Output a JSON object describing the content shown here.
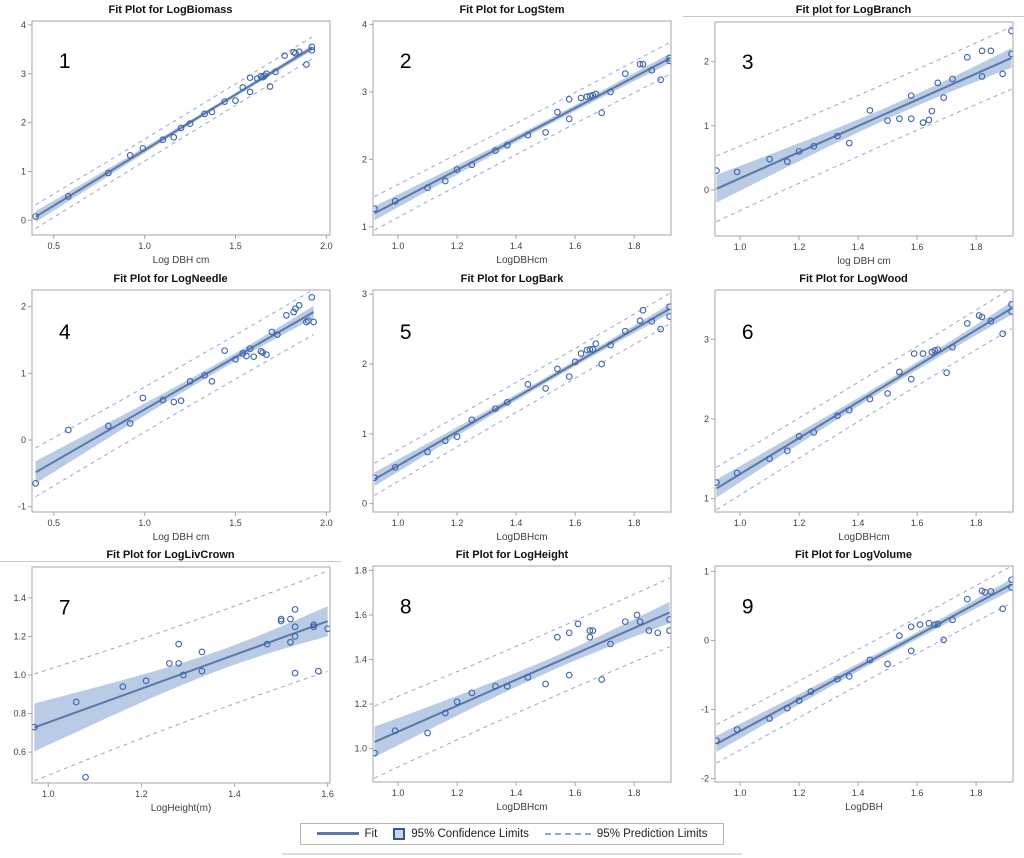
{
  "colors": {
    "fit_line": "#5b78a6",
    "ci_band": "#b9cbe5",
    "pred_line": "#93a6d8",
    "marker": "#3d63ae",
    "frame": "#a6a6a6",
    "tick_text": "#3f3f3f",
    "legend_border": "#b5b5b5",
    "rule": "#dcdcdc"
  },
  "legend": {
    "items": [
      {
        "label": "Fit",
        "swatch": "line"
      },
      {
        "label": "95% Confidence Limits",
        "swatch": "box"
      },
      {
        "label": "95% Prediction Limits",
        "swatch": "dashes"
      }
    ]
  },
  "chart_data": [
    {
      "type": "scatter",
      "number": "1",
      "title": "Fit Plot for LogBiomass",
      "xlabel": "Log DBH cm",
      "ylabel": "",
      "xlim": [
        0.38,
        2.02
      ],
      "ylim": [
        -0.3,
        4.08
      ],
      "xticks": [
        0.5,
        1.0,
        1.5,
        2.0
      ],
      "xtick_labels": [
        "0.5",
        "1.0",
        "1.5",
        "2.0"
      ],
      "yticks": [
        0,
        1,
        2,
        3,
        4
      ],
      "ytick_labels": [
        "0",
        "1",
        "2",
        "3",
        "4"
      ],
      "title_underline": false,
      "legend_position": "bottom-shared",
      "points": [
        [
          0.4,
          0.08
        ],
        [
          0.58,
          0.49
        ],
        [
          0.8,
          0.97
        ],
        [
          0.92,
          1.33
        ],
        [
          0.99,
          1.47
        ],
        [
          1.1,
          1.65
        ],
        [
          1.16,
          1.7
        ],
        [
          1.2,
          1.89
        ],
        [
          1.25,
          1.98
        ],
        [
          1.33,
          2.18
        ],
        [
          1.37,
          2.22
        ],
        [
          1.44,
          2.43
        ],
        [
          1.5,
          2.45
        ],
        [
          1.54,
          2.72
        ],
        [
          1.58,
          2.63
        ],
        [
          1.58,
          2.92
        ],
        [
          1.62,
          2.9
        ],
        [
          1.64,
          2.95
        ],
        [
          1.65,
          2.93
        ],
        [
          1.66,
          2.96
        ],
        [
          1.67,
          3.0
        ],
        [
          1.69,
          2.74
        ],
        [
          1.72,
          3.04
        ],
        [
          1.77,
          3.37
        ],
        [
          1.82,
          3.44
        ],
        [
          1.83,
          3.42
        ],
        [
          1.85,
          3.45
        ],
        [
          1.89,
          3.19
        ],
        [
          1.92,
          3.55
        ],
        [
          1.92,
          3.48
        ]
      ]
    },
    {
      "type": "scatter",
      "number": "2",
      "title": "Fit Plot for LogStem",
      "xlabel": "LogDBHcm",
      "ylabel": "",
      "xlim": [
        0.915,
        1.925
      ],
      "ylim": [
        0.88,
        4.05
      ],
      "xticks": [
        1.0,
        1.2,
        1.4,
        1.6,
        1.8
      ],
      "xtick_labels": [
        "1.0",
        "1.2",
        "1.4",
        "1.6",
        "1.8"
      ],
      "yticks": [
        1,
        2,
        3,
        4
      ],
      "ytick_labels": [
        "1",
        "2",
        "3",
        "4"
      ],
      "title_underline": false,
      "legend_position": "bottom-shared",
      "points": [
        [
          0.92,
          1.27
        ],
        [
          0.99,
          1.38
        ],
        [
          1.1,
          1.58
        ],
        [
          1.16,
          1.68
        ],
        [
          1.2,
          1.85
        ],
        [
          1.25,
          1.92
        ],
        [
          1.33,
          2.13
        ],
        [
          1.37,
          2.21
        ],
        [
          1.44,
          2.36
        ],
        [
          1.5,
          2.4
        ],
        [
          1.54,
          2.7
        ],
        [
          1.58,
          2.6
        ],
        [
          1.58,
          2.89
        ],
        [
          1.62,
          2.91
        ],
        [
          1.64,
          2.93
        ],
        [
          1.65,
          2.94
        ],
        [
          1.66,
          2.95
        ],
        [
          1.67,
          2.97
        ],
        [
          1.69,
          2.69
        ],
        [
          1.72,
          3.0
        ],
        [
          1.77,
          3.27
        ],
        [
          1.82,
          3.41
        ],
        [
          1.83,
          3.41
        ],
        [
          1.86,
          3.32
        ],
        [
          1.89,
          3.18
        ],
        [
          1.92,
          3.5
        ],
        [
          1.92,
          3.46
        ]
      ]
    },
    {
      "type": "scatter",
      "number": "3",
      "title": "Fit plot for LogBranch",
      "xlabel": "log DBH cm",
      "ylabel": "",
      "xlim": [
        0.915,
        1.925
      ],
      "ylim": [
        -0.72,
        2.62
      ],
      "xticks": [
        1.0,
        1.2,
        1.4,
        1.6,
        1.8
      ],
      "xtick_labels": [
        "1.0",
        "1.2",
        "1.4",
        "1.6",
        "1.8"
      ],
      "yticks": [
        0,
        1,
        2
      ],
      "ytick_labels": [
        "0",
        "1",
        "2"
      ],
      "title_underline": true,
      "legend_position": "bottom-shared",
      "points": [
        [
          0.92,
          0.3
        ],
        [
          0.99,
          0.28
        ],
        [
          1.1,
          0.48
        ],
        [
          1.16,
          0.44
        ],
        [
          1.2,
          0.6
        ],
        [
          1.25,
          0.68
        ],
        [
          1.33,
          0.84
        ],
        [
          1.37,
          0.73
        ],
        [
          1.44,
          1.24
        ],
        [
          1.5,
          1.08
        ],
        [
          1.54,
          1.11
        ],
        [
          1.58,
          1.11
        ],
        [
          1.58,
          1.47
        ],
        [
          1.62,
          1.05
        ],
        [
          1.64,
          1.09
        ],
        [
          1.65,
          1.23
        ],
        [
          1.67,
          1.67
        ],
        [
          1.69,
          1.44
        ],
        [
          1.72,
          1.73
        ],
        [
          1.77,
          2.07
        ],
        [
          1.82,
          1.77
        ],
        [
          1.82,
          2.17
        ],
        [
          1.85,
          2.17
        ],
        [
          1.89,
          1.81
        ],
        [
          1.92,
          2.48
        ],
        [
          1.92,
          2.12
        ]
      ]
    },
    {
      "type": "scatter",
      "number": "4",
      "title": "Fit Plot for LogNeedle",
      "xlabel": "Log DBH cm",
      "ylabel": "",
      "xlim": [
        0.38,
        2.02
      ],
      "ylim": [
        -1.08,
        2.25
      ],
      "xticks": [
        0.5,
        1.0,
        1.5,
        2.0
      ],
      "xtick_labels": [
        "0.5",
        "1.0",
        "1.5",
        "2.0"
      ],
      "yticks": [
        -1,
        0,
        1,
        2
      ],
      "ytick_labels": [
        "-1",
        "0",
        "1",
        "2"
      ],
      "title_underline": false,
      "legend_position": "bottom-shared",
      "points": [
        [
          0.4,
          -0.65
        ],
        [
          0.58,
          0.15
        ],
        [
          0.8,
          0.21
        ],
        [
          0.92,
          0.25
        ],
        [
          0.99,
          0.63
        ],
        [
          1.1,
          0.6
        ],
        [
          1.16,
          0.57
        ],
        [
          1.2,
          0.59
        ],
        [
          1.25,
          0.88
        ],
        [
          1.33,
          0.97
        ],
        [
          1.37,
          0.88
        ],
        [
          1.44,
          1.34
        ],
        [
          1.5,
          1.21
        ],
        [
          1.54,
          1.3
        ],
        [
          1.56,
          1.26
        ],
        [
          1.58,
          1.37
        ],
        [
          1.6,
          1.25
        ],
        [
          1.64,
          1.33
        ],
        [
          1.65,
          1.31
        ],
        [
          1.67,
          1.28
        ],
        [
          1.7,
          1.62
        ],
        [
          1.73,
          1.58
        ],
        [
          1.78,
          1.87
        ],
        [
          1.82,
          1.92
        ],
        [
          1.83,
          1.97
        ],
        [
          1.85,
          2.02
        ],
        [
          1.89,
          1.77
        ],
        [
          1.9,
          1.79
        ],
        [
          1.92,
          2.14
        ],
        [
          1.93,
          1.77
        ]
      ]
    },
    {
      "type": "scatter",
      "number": "5",
      "title": "Fit Plot for LogBark",
      "xlabel": "LogDBHcm",
      "ylabel": "",
      "xlim": [
        0.915,
        1.925
      ],
      "ylim": [
        -0.12,
        3.06
      ],
      "xticks": [
        1.0,
        1.2,
        1.4,
        1.6,
        1.8
      ],
      "xtick_labels": [
        "1.0",
        "1.2",
        "1.4",
        "1.6",
        "1.8"
      ],
      "yticks": [
        0,
        1,
        2,
        3
      ],
      "ytick_labels": [
        "0",
        "1",
        "2",
        "3"
      ],
      "title_underline": false,
      "legend_position": "bottom-shared",
      "points": [
        [
          0.92,
          0.37
        ],
        [
          0.99,
          0.52
        ],
        [
          1.1,
          0.74
        ],
        [
          1.16,
          0.9
        ],
        [
          1.2,
          0.96
        ],
        [
          1.25,
          1.2
        ],
        [
          1.33,
          1.36
        ],
        [
          1.37,
          1.45
        ],
        [
          1.44,
          1.71
        ],
        [
          1.5,
          1.65
        ],
        [
          1.54,
          1.93
        ],
        [
          1.58,
          1.82
        ],
        [
          1.6,
          2.03
        ],
        [
          1.62,
          2.15
        ],
        [
          1.64,
          2.2
        ],
        [
          1.65,
          2.21
        ],
        [
          1.66,
          2.21
        ],
        [
          1.67,
          2.29
        ],
        [
          1.69,
          2.0
        ],
        [
          1.72,
          2.27
        ],
        [
          1.77,
          2.47
        ],
        [
          1.82,
          2.62
        ],
        [
          1.83,
          2.77
        ],
        [
          1.86,
          2.61
        ],
        [
          1.89,
          2.5
        ],
        [
          1.92,
          2.82
        ],
        [
          1.92,
          2.68
        ]
      ]
    },
    {
      "type": "scatter",
      "number": "6",
      "title": "Fit Plot for LogWood",
      "xlabel": "LogDBHcm",
      "ylabel": "",
      "xlim": [
        0.915,
        1.925
      ],
      "ylim": [
        0.83,
        3.62
      ],
      "xticks": [
        1.0,
        1.2,
        1.4,
        1.6,
        1.8
      ],
      "xtick_labels": [
        "1.0",
        "1.2",
        "1.4",
        "1.6",
        "1.8"
      ],
      "yticks": [
        1,
        2,
        3
      ],
      "ytick_labels": [
        "1",
        "2",
        "3"
      ],
      "title_underline": false,
      "legend_position": "bottom-shared",
      "points": [
        [
          0.92,
          1.2
        ],
        [
          0.99,
          1.32
        ],
        [
          1.1,
          1.5
        ],
        [
          1.16,
          1.6
        ],
        [
          1.2,
          1.78
        ],
        [
          1.25,
          1.83
        ],
        [
          1.33,
          2.04
        ],
        [
          1.37,
          2.11
        ],
        [
          1.44,
          2.25
        ],
        [
          1.5,
          2.32
        ],
        [
          1.54,
          2.59
        ],
        [
          1.58,
          2.5
        ],
        [
          1.59,
          2.82
        ],
        [
          1.62,
          2.82
        ],
        [
          1.65,
          2.84
        ],
        [
          1.66,
          2.86
        ],
        [
          1.67,
          2.87
        ],
        [
          1.7,
          2.58
        ],
        [
          1.72,
          2.9
        ],
        [
          1.77,
          3.2
        ],
        [
          1.81,
          3.3
        ],
        [
          1.82,
          3.28
        ],
        [
          1.85,
          3.23
        ],
        [
          1.89,
          3.07
        ],
        [
          1.92,
          3.44
        ],
        [
          1.92,
          3.35
        ]
      ]
    },
    {
      "type": "scatter",
      "number": "7",
      "title": "Fit Plot for LogLivCrown",
      "xlabel": "LogHeight(m)",
      "ylabel": "",
      "xlim": [
        0.965,
        1.605
      ],
      "ylim": [
        0.44,
        1.56
      ],
      "xticks": [
        1.0,
        1.2,
        1.4,
        1.6
      ],
      "xtick_labels": [
        "1.0",
        "1.2",
        "1.4",
        "1.6"
      ],
      "yticks": [
        0.6,
        0.8,
        1.0,
        1.2,
        1.4
      ],
      "ytick_labels": [
        "0.6",
        "0.8",
        "1.0",
        "1.2",
        "1.4"
      ],
      "title_underline": true,
      "legend_position": "bottom-shared",
      "points": [
        [
          0.97,
          0.73
        ],
        [
          1.06,
          0.86
        ],
        [
          1.08,
          0.47
        ],
        [
          1.16,
          0.94
        ],
        [
          1.21,
          0.97
        ],
        [
          1.26,
          1.06
        ],
        [
          1.28,
          1.06
        ],
        [
          1.28,
          1.16
        ],
        [
          1.29,
          1.0
        ],
        [
          1.33,
          1.12
        ],
        [
          1.33,
          1.02
        ],
        [
          1.47,
          1.16
        ],
        [
          1.5,
          1.28
        ],
        [
          1.5,
          1.29
        ],
        [
          1.52,
          1.29
        ],
        [
          1.52,
          1.17
        ],
        [
          1.53,
          1.34
        ],
        [
          1.53,
          1.25
        ],
        [
          1.53,
          1.2
        ],
        [
          1.53,
          1.01
        ],
        [
          1.57,
          1.25
        ],
        [
          1.57,
          1.26
        ],
        [
          1.58,
          1.02
        ],
        [
          1.6,
          1.24
        ]
      ]
    },
    {
      "type": "scatter",
      "number": "8",
      "title": "Fit Plot for LogHeight",
      "xlabel": "LogDBHcm",
      "ylabel": "",
      "xlim": [
        0.915,
        1.925
      ],
      "ylim": [
        0.85,
        1.82
      ],
      "xticks": [
        1.0,
        1.2,
        1.4,
        1.6,
        1.8
      ],
      "xtick_labels": [
        "1.0",
        "1.2",
        "1.4",
        "1.6",
        "1.8"
      ],
      "yticks": [
        1.0,
        1.2,
        1.4,
        1.6,
        1.8
      ],
      "ytick_labels": [
        "1.0",
        "1.2",
        "1.4",
        "1.6",
        "1.8"
      ],
      "title_underline": false,
      "legend_position": "bottom-shared",
      "points": [
        [
          0.92,
          0.98
        ],
        [
          0.99,
          1.08
        ],
        [
          1.1,
          1.07
        ],
        [
          1.16,
          1.16
        ],
        [
          1.2,
          1.21
        ],
        [
          1.25,
          1.25
        ],
        [
          1.33,
          1.28
        ],
        [
          1.37,
          1.28
        ],
        [
          1.44,
          1.32
        ],
        [
          1.5,
          1.29
        ],
        [
          1.54,
          1.5
        ],
        [
          1.58,
          1.52
        ],
        [
          1.58,
          1.33
        ],
        [
          1.61,
          1.56
        ],
        [
          1.65,
          1.53
        ],
        [
          1.65,
          1.5
        ],
        [
          1.66,
          1.53
        ],
        [
          1.69,
          1.31
        ],
        [
          1.72,
          1.47
        ],
        [
          1.77,
          1.57
        ],
        [
          1.81,
          1.6
        ],
        [
          1.82,
          1.57
        ],
        [
          1.85,
          1.53
        ],
        [
          1.88,
          1.52
        ],
        [
          1.92,
          1.58
        ],
        [
          1.92,
          1.53
        ]
      ]
    },
    {
      "type": "scatter",
      "number": "9",
      "title": "Fit Plot for LogVolume",
      "xlabel": "LogDBH",
      "ylabel": "",
      "xlim": [
        0.915,
        1.925
      ],
      "ylim": [
        -2.05,
        1.08
      ],
      "xticks": [
        1.0,
        1.2,
        1.4,
        1.6,
        1.8
      ],
      "xtick_labels": [
        "1.0",
        "1.2",
        "1.4",
        "1.6",
        "1.8"
      ],
      "yticks": [
        -2,
        -1,
        0,
        1
      ],
      "ytick_labels": [
        "-2",
        "-1",
        "0",
        "1"
      ],
      "title_underline": false,
      "legend_position": "bottom-shared",
      "points": [
        [
          0.92,
          -1.45
        ],
        [
          0.99,
          -1.29
        ],
        [
          1.1,
          -1.13
        ],
        [
          1.16,
          -0.98
        ],
        [
          1.2,
          -0.87
        ],
        [
          1.24,
          -0.74
        ],
        [
          1.33,
          -0.56
        ],
        [
          1.37,
          -0.52
        ],
        [
          1.44,
          -0.28
        ],
        [
          1.5,
          -0.34
        ],
        [
          1.54,
          0.07
        ],
        [
          1.58,
          -0.15
        ],
        [
          1.58,
          0.2
        ],
        [
          1.61,
          0.23
        ],
        [
          1.64,
          0.25
        ],
        [
          1.66,
          0.23
        ],
        [
          1.67,
          0.24
        ],
        [
          1.69,
          0.01
        ],
        [
          1.72,
          0.3
        ],
        [
          1.77,
          0.6
        ],
        [
          1.82,
          0.72
        ],
        [
          1.83,
          0.7
        ],
        [
          1.85,
          0.71
        ],
        [
          1.89,
          0.46
        ],
        [
          1.92,
          0.88
        ],
        [
          1.92,
          0.77
        ]
      ]
    }
  ]
}
